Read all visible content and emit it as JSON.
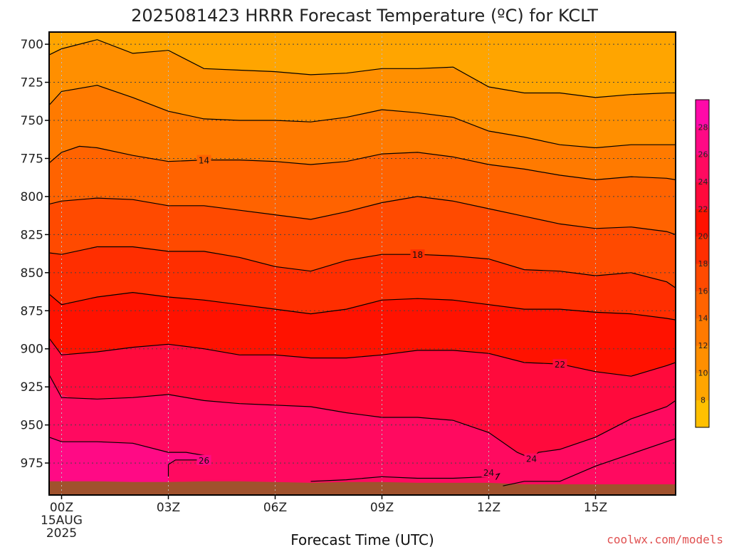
{
  "title": "2025081423 HRRR Forecast Temperature (ºC) for KCLT",
  "xlabel": "Forecast Time (UTC)",
  "credit": "coolwx.com/models",
  "colors": {
    "background": "#ffffff",
    "ground": "#a0522d",
    "contour": "#000000",
    "gridline": "#444444",
    "credit": "#e05050"
  },
  "chart_data": {
    "type": "heatmap",
    "title": "2025081423 HRRR Forecast Temperature (ºC) for KCLT",
    "xlabel": "Forecast Time (UTC)",
    "ylabel": "",
    "x_hours_from_00Z": [
      -0.35,
      17.25
    ],
    "y_pressure_hPa": [
      692,
      996
    ],
    "y_inverted": true,
    "x_ticks": [
      {
        "hour": 0,
        "label": "00Z",
        "sub": [
          "15AUG",
          "2025"
        ]
      },
      {
        "hour": 3,
        "label": "03Z"
      },
      {
        "hour": 6,
        "label": "06Z"
      },
      {
        "hour": 9,
        "label": "09Z"
      },
      {
        "hour": 12,
        "label": "12Z"
      },
      {
        "hour": 15,
        "label": "15Z"
      }
    ],
    "y_ticks": [
      700,
      725,
      750,
      775,
      800,
      825,
      850,
      875,
      900,
      925,
      950,
      975
    ],
    "grid": true,
    "colorbar": {
      "placement": "right",
      "min": 6,
      "max": 30,
      "levels": [
        6,
        8,
        10,
        12,
        14,
        16,
        18,
        20,
        22,
        24,
        26,
        28,
        30
      ],
      "tick_labels": [
        8,
        10,
        12,
        14,
        16,
        18,
        20,
        22,
        24,
        26,
        28
      ],
      "colors": [
        "#ffc000",
        "#ffa500",
        "#ff8f00",
        "#ff7a00",
        "#ff6300",
        "#ff4a00",
        "#ff2e00",
        "#ff1200",
        "#ff0a3c",
        "#ff0a60",
        "#ff0a85",
        "#ff0aa8"
      ]
    },
    "contours": [
      {
        "value": 10,
        "points": [
          [
            -0.35,
            707
          ],
          [
            0,
            703
          ],
          [
            1,
            697
          ],
          [
            2,
            706
          ],
          [
            3,
            704
          ],
          [
            4,
            716
          ],
          [
            5,
            717
          ],
          [
            6,
            718
          ],
          [
            7,
            720
          ],
          [
            8,
            719
          ],
          [
            9,
            716
          ],
          [
            10,
            716
          ],
          [
            11,
            715
          ],
          [
            12,
            728
          ],
          [
            13,
            732
          ],
          [
            14,
            732
          ],
          [
            15,
            735
          ],
          [
            16,
            733
          ],
          [
            17,
            732
          ],
          [
            17.25,
            732
          ]
        ]
      },
      {
        "value": 12,
        "points": [
          [
            -0.35,
            740
          ],
          [
            0,
            731
          ],
          [
            1,
            727
          ],
          [
            2,
            735
          ],
          [
            3,
            744
          ],
          [
            4,
            749
          ],
          [
            5,
            750
          ],
          [
            6,
            750
          ],
          [
            7,
            751
          ],
          [
            8,
            748
          ],
          [
            9,
            743
          ],
          [
            10,
            745
          ],
          [
            11,
            748
          ],
          [
            12,
            757
          ],
          [
            13,
            761
          ],
          [
            14,
            766
          ],
          [
            15,
            768
          ],
          [
            16,
            766
          ],
          [
            17,
            766
          ],
          [
            17.25,
            766
          ]
        ]
      },
      {
        "value": 14,
        "labels": [
          [
            4,
            776
          ]
        ],
        "points": [
          [
            -0.35,
            778
          ],
          [
            0,
            771
          ],
          [
            0.5,
            767
          ],
          [
            1,
            768
          ],
          [
            2,
            773
          ],
          [
            3,
            777
          ],
          [
            4,
            776
          ],
          [
            5,
            776
          ],
          [
            6,
            777
          ],
          [
            7,
            779
          ],
          [
            8,
            777
          ],
          [
            9,
            772
          ],
          [
            10,
            771
          ],
          [
            11,
            774
          ],
          [
            12,
            779
          ],
          [
            13,
            782
          ],
          [
            14,
            786
          ],
          [
            15,
            789
          ],
          [
            16,
            787
          ],
          [
            17,
            788
          ],
          [
            17.25,
            789
          ]
        ]
      },
      {
        "value": 16,
        "points": [
          [
            -0.35,
            805
          ],
          [
            0,
            803
          ],
          [
            1,
            801
          ],
          [
            2,
            802
          ],
          [
            3,
            806
          ],
          [
            4,
            806
          ],
          [
            5,
            809
          ],
          [
            6,
            812
          ],
          [
            7,
            815
          ],
          [
            8,
            810
          ],
          [
            9,
            804
          ],
          [
            10,
            800
          ],
          [
            11,
            803
          ],
          [
            12,
            808
          ],
          [
            13,
            813
          ],
          [
            14,
            818
          ],
          [
            15,
            821
          ],
          [
            16,
            820
          ],
          [
            17,
            823
          ],
          [
            17.25,
            825
          ]
        ]
      },
      {
        "value": 18,
        "labels": [
          [
            10,
            838
          ]
        ],
        "points": [
          [
            -0.35,
            837
          ],
          [
            0,
            838
          ],
          [
            1,
            833
          ],
          [
            2,
            833
          ],
          [
            3,
            836
          ],
          [
            4,
            836
          ],
          [
            5,
            840
          ],
          [
            6,
            846
          ],
          [
            7,
            849
          ],
          [
            8,
            842
          ],
          [
            9,
            838
          ],
          [
            10,
            838
          ],
          [
            11,
            839
          ],
          [
            12,
            841
          ],
          [
            13,
            848
          ],
          [
            14,
            849
          ],
          [
            15,
            852
          ],
          [
            16,
            850
          ],
          [
            17,
            856
          ],
          [
            17.25,
            860
          ]
        ]
      },
      {
        "value": 20,
        "points": [
          [
            -0.35,
            864
          ],
          [
            0,
            871
          ],
          [
            1,
            866
          ],
          [
            2,
            863
          ],
          [
            3,
            866
          ],
          [
            4,
            868
          ],
          [
            5,
            871
          ],
          [
            6,
            874
          ],
          [
            7,
            877
          ],
          [
            8,
            874
          ],
          [
            9,
            868
          ],
          [
            10,
            867
          ],
          [
            11,
            868
          ],
          [
            12,
            871
          ],
          [
            13,
            874
          ],
          [
            14,
            874
          ],
          [
            15,
            876
          ],
          [
            16,
            877
          ],
          [
            17,
            880
          ],
          [
            17.25,
            881
          ]
        ]
      },
      {
        "value": 22,
        "labels": [
          [
            14,
            910
          ]
        ],
        "points": [
          [
            -0.35,
            893
          ],
          [
            0,
            904
          ],
          [
            1,
            902
          ],
          [
            2,
            899
          ],
          [
            3,
            897
          ],
          [
            4,
            900
          ],
          [
            5,
            904
          ],
          [
            6,
            904
          ],
          [
            7,
            906
          ],
          [
            8,
            906
          ],
          [
            9,
            904
          ],
          [
            10,
            901
          ],
          [
            11,
            901
          ],
          [
            12,
            903
          ],
          [
            13,
            909
          ],
          [
            14,
            910
          ],
          [
            15,
            915
          ],
          [
            16,
            918
          ],
          [
            17,
            911
          ],
          [
            17.25,
            909
          ]
        ]
      },
      {
        "value": 24,
        "labels": [
          [
            13.2,
            972
          ],
          [
            12,
            981
          ]
        ],
        "points": [
          [
            -0.35,
            917
          ],
          [
            0,
            932
          ],
          [
            1,
            933
          ],
          [
            2,
            932
          ],
          [
            3,
            930
          ],
          [
            4,
            934
          ],
          [
            5,
            936
          ],
          [
            6,
            937
          ],
          [
            7,
            938
          ],
          [
            8,
            942
          ],
          [
            9,
            945
          ],
          [
            10,
            945
          ],
          [
            11,
            947
          ],
          [
            12,
            955
          ],
          [
            12.8,
            968
          ],
          [
            13.2,
            972
          ],
          [
            13.4,
            968
          ],
          [
            14,
            966
          ],
          [
            15,
            958
          ],
          [
            16,
            946
          ],
          [
            17,
            938
          ],
          [
            17.25,
            934
          ]
        ]
      },
      {
        "value": 24,
        "points": [
          [
            12.4,
            990
          ],
          [
            13,
            987
          ],
          [
            14,
            987
          ],
          [
            15,
            977
          ],
          [
            16,
            969
          ],
          [
            17,
            961
          ],
          [
            17.25,
            959
          ]
        ]
      },
      {
        "value": 24,
        "points": [
          [
            7,
            987
          ],
          [
            8,
            986
          ],
          [
            9,
            984
          ],
          [
            10,
            985
          ],
          [
            11,
            985
          ],
          [
            12,
            984
          ],
          [
            12.3,
            982
          ],
          [
            12.2,
            986
          ]
        ]
      },
      {
        "value": 26,
        "labels": [
          [
            4,
            973
          ]
        ],
        "points": [
          [
            -0.35,
            958
          ],
          [
            0,
            961
          ],
          [
            1,
            961
          ],
          [
            2,
            962
          ],
          [
            3,
            968
          ],
          [
            3.5,
            968
          ],
          [
            4,
            970
          ],
          [
            4,
            973
          ],
          [
            3.2,
            973
          ],
          [
            3,
            976
          ],
          [
            3,
            984
          ]
        ]
      }
    ],
    "surface_pressure_hPa": [
      [
        -0.35,
        987.0
      ],
      [
        1,
        987.0
      ],
      [
        2,
        987.5
      ],
      [
        3,
        987.5
      ],
      [
        4,
        987.0
      ],
      [
        5,
        987.0
      ],
      [
        6,
        987.5
      ],
      [
        7,
        988.0
      ],
      [
        8,
        987.5
      ],
      [
        9,
        987.5
      ],
      [
        10,
        988.0
      ],
      [
        11,
        988.0
      ],
      [
        12,
        988.0
      ],
      [
        13,
        989.0
      ],
      [
        14,
        989.0
      ],
      [
        15,
        989.0
      ],
      [
        16,
        989.0
      ],
      [
        17,
        989.0
      ],
      [
        17.25,
        989.0
      ]
    ]
  }
}
